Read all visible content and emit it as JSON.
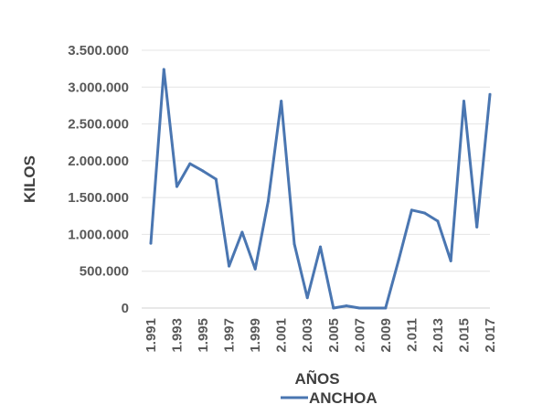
{
  "chart_data": {
    "type": "line",
    "xlabel": "AÑOS",
    "ylabel": "KILOS",
    "ylim": [
      0,
      3500000
    ],
    "yticks": [
      0,
      500000,
      1000000,
      1500000,
      2000000,
      2500000,
      3000000,
      3500000
    ],
    "ytick_labels": [
      "0",
      "500.000",
      "1.000.000",
      "1.500.000",
      "2.000.000",
      "2.500.000",
      "3.000.000",
      "3.500.000"
    ],
    "grid": "horizontal",
    "legend": "bottom",
    "x": [
      1991,
      1992,
      1993,
      1994,
      1995,
      1996,
      1997,
      1998,
      1999,
      2000,
      2001,
      2002,
      2003,
      2004,
      2005,
      2006,
      2007,
      2008,
      2009,
      2010,
      2011,
      2012,
      2013,
      2014,
      2015,
      2016,
      2017
    ],
    "xtick_labels": [
      "1.991",
      "1.993",
      "1.995",
      "1.997",
      "1.999",
      "2.001",
      "2.003",
      "2.005",
      "2.007",
      "2.009",
      "2.011",
      "2.013",
      "2.015",
      "2.017"
    ],
    "series": [
      {
        "name": "ANCHOA",
        "color": "#4a76b1",
        "values": [
          880000,
          3240000,
          1650000,
          1960000,
          1860000,
          1750000,
          570000,
          1030000,
          530000,
          1450000,
          2810000,
          870000,
          140000,
          830000,
          0,
          30000,
          0,
          0,
          0,
          650000,
          1330000,
          1290000,
          1180000,
          640000,
          2810000,
          1100000,
          2900000
        ]
      }
    ]
  }
}
